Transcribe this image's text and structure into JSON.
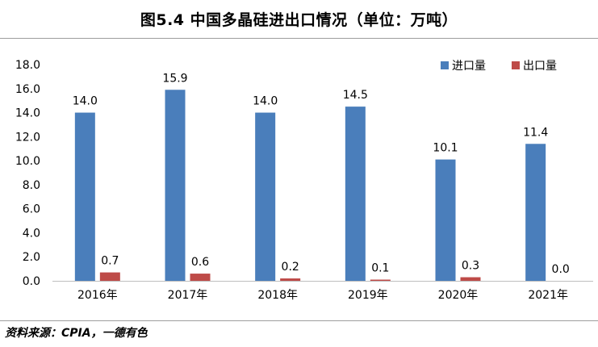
{
  "title": "图5.4 中国多晶硅进出口情况（单位：万吨）",
  "source": "资料来源：CPIA，一德有色",
  "chart_data": {
    "type": "bar",
    "categories": [
      "2016年",
      "2017年",
      "2018年",
      "2019年",
      "2020年",
      "2021年"
    ],
    "series": [
      {
        "name": "进口量",
        "color": "#4a7ebb",
        "values": [
          14.0,
          15.9,
          14.0,
          14.5,
          10.1,
          11.4
        ]
      },
      {
        "name": "出口量",
        "color": "#be4b48",
        "values": [
          0.7,
          0.6,
          0.2,
          0.1,
          0.3,
          0.0
        ]
      }
    ],
    "ylim": [
      0,
      18
    ],
    "yticks": [
      "0.0",
      "2.0",
      "4.0",
      "6.0",
      "8.0",
      "10.0",
      "12.0",
      "14.0",
      "16.0",
      "18.0"
    ],
    "legend_position": "top-right",
    "grid": false
  }
}
